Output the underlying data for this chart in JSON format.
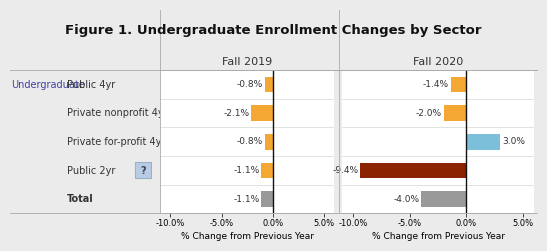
{
  "title": "Figure 1. Undergraduate Enrollment Changes by Sector",
  "categories": [
    "Public 4yr",
    "Private nonprofit 4yr",
    "Private for-profit 4yr",
    "Public 2yr",
    "Total"
  ],
  "fall2019_values": [
    -0.8,
    -2.1,
    -0.8,
    -1.1,
    -1.1
  ],
  "fall2020_values": [
    -1.4,
    -2.0,
    3.0,
    -9.4,
    -4.0
  ],
  "fall2019_labels": [
    "-0.8%",
    "-2.1%",
    "-0.8%",
    "-1.1%",
    "-1.1%"
  ],
  "fall2020_labels": [
    "-1.4%",
    "-2.0%",
    "3.0%",
    "-9.4%",
    "-4.0%"
  ],
  "bar_colors_2019": [
    "#F5A733",
    "#F5A733",
    "#F5A733",
    "#F5A733",
    "#999999"
  ],
  "bar_colors_2020": [
    "#F5A733",
    "#F5A733",
    "#7BBFDA",
    "#8B2200",
    "#999999"
  ],
  "xlim": [
    -11.0,
    6.0
  ],
  "xticks": [
    -10.0,
    -5.0,
    0.0,
    5.0
  ],
  "xtick_labels": [
    "-10.0%",
    "-5.0%",
    "0.0%",
    "5.0%"
  ],
  "xlabel": "% Change from Previous Year",
  "col1_header": "Fall 2019",
  "col2_header": "Fall 2020",
  "row_label_main": "Undergraduate",
  "bg_color": "#EBEBEB",
  "plot_bg_color": "#FFFFFF",
  "bar_height": 0.55,
  "question_mark_color": "#B8CCE4",
  "question_mark_edge": "#9AAFC8",
  "undergraduate_color": "#4040AA",
  "category_color": "#333333",
  "total_bold": true,
  "value_label_fontsize": 6.5,
  "category_fontsize": 7.0,
  "header_fontsize": 8.0,
  "title_fontsize": 9.5,
  "xlabel_fontsize": 6.5,
  "xtick_fontsize": 6.0
}
